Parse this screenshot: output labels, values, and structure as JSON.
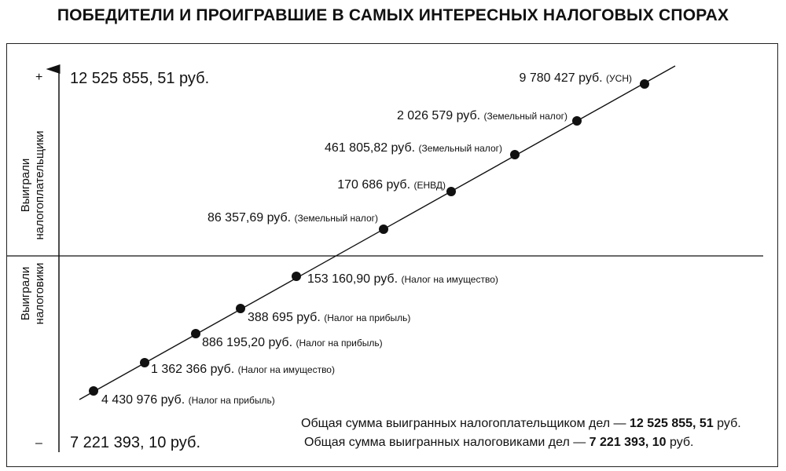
{
  "title": "ПОБЕДИТЕЛИ И ПРОИГРАВШИЕ В САМЫХ ИНТЕРЕСНЫХ НАЛОГОВЫХ СПОРАХ",
  "axis": {
    "plus_sign": "+",
    "minus_sign": "–",
    "top_value": "12 525 855, 51 руб.",
    "bottom_value": "7 221 393, 10 руб.",
    "upper_label_line1": "Выиграли",
    "upper_label_line2": "налогоплательщики",
    "lower_label_line1": "Выиграли",
    "lower_label_line2": "налоговики"
  },
  "totals": {
    "taxpayers_prefix": "Общая сумма выигранных налогоплательщиком дел — ",
    "taxpayers_value": "12 525 855, 51",
    "taxpayers_suffix": " руб.",
    "tax_authorities_prefix": "Общая сумма выигранных налоговиками дел — ",
    "tax_authorities_value": "7 221 393, 10",
    "tax_authorities_suffix": " руб."
  },
  "colors": {
    "ink": "#111111",
    "background": "#ffffff"
  },
  "chart_data": {
    "type": "scatter",
    "title": "ПОБЕДИТЕЛИ И ПРОИГРАВШИЕ В САМЫХ ИНТЕРЕСНЫХ НАЛОГОВЫХ СПОРАХ",
    "points": [
      {
        "amount": "4 430 976 руб.",
        "tax": "(Налог на прибыль)",
        "winner": "налоговики"
      },
      {
        "amount": "1 362 366 руб.",
        "tax": "(Налог на имущество)",
        "winner": "налоговики"
      },
      {
        "amount": "886 195,20 руб.",
        "tax": "(Налог на прибыль)",
        "winner": "налоговики"
      },
      {
        "amount": "388 695 руб.",
        "tax": "(Налог на прибыль)",
        "winner": "налоговики"
      },
      {
        "amount": "153 160,90 руб.",
        "tax": "(Налог на имущество)",
        "winner": "налоговики"
      },
      {
        "amount": "86 357,69 руб.",
        "tax": "(Земельный налог)",
        "winner": "налогоплательщики"
      },
      {
        "amount": "170 686 руб.",
        "tax": "(ЕНВД)",
        "winner": "налогоплательщики"
      },
      {
        "amount": "461 805,82 руб.",
        "tax": "(Земельный налог)",
        "winner": "налогоплательщики"
      },
      {
        "amount": "2 026 579 руб.",
        "tax": "(Земельный налог)",
        "winner": "налогоплательщики"
      },
      {
        "amount": "9 780 427 руб.",
        "tax": "(УСН)",
        "winner": "налогоплательщики"
      }
    ]
  }
}
